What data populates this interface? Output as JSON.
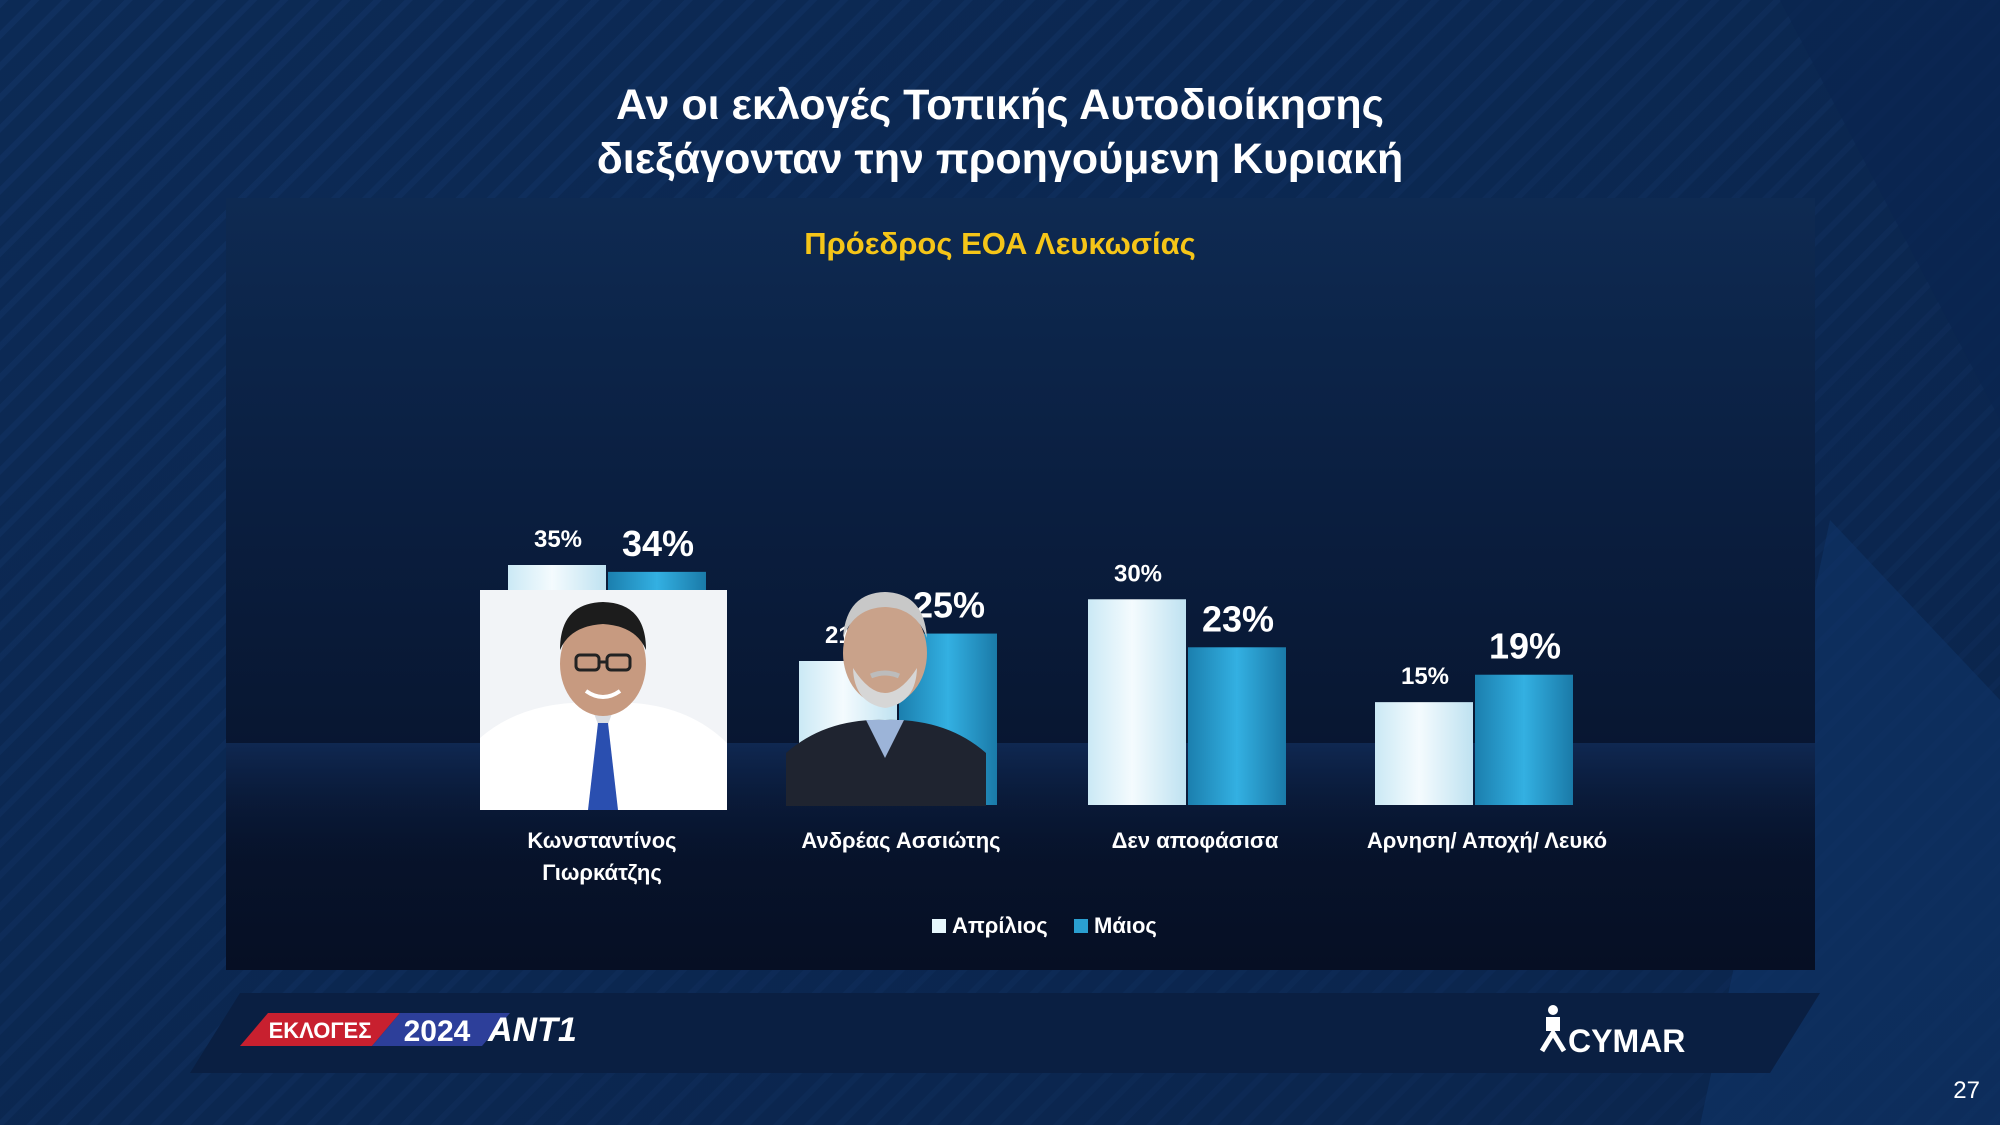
{
  "header": {
    "title_line1": "Αν οι εκλογές Τοπικής Αυτοδιοίκησης",
    "title_line2": "διεξάγονταν την προηγούμενη Κυριακή"
  },
  "chart_data": {
    "type": "bar",
    "title": "Πρόεδρος ΕΟΑ Λευκωσίας",
    "categories": [
      "Κωνσταντίνος Γιωρκάτζης",
      "Ανδρέας Ασσιώτης",
      "Δεν αποφάσισα",
      "Αρνηση/ Αποχή/ Λευκό"
    ],
    "category_lines": [
      [
        "Κωνσταντίνος",
        "Γιωρκάτζης"
      ],
      [
        "Ανδρέας Ασσιώτης"
      ],
      [
        "Δεν αποφάσισα"
      ],
      [
        "Αρνηση/ Αποχή/ Λευκό"
      ]
    ],
    "series": [
      {
        "name": "Απρίλιος",
        "values": [
          35,
          21,
          30,
          15
        ],
        "labels": [
          "35%",
          "21%",
          "30%",
          "15%"
        ],
        "color": "#e6f7fd"
      },
      {
        "name": "Μάιος",
        "values": [
          34,
          25,
          23,
          19
        ],
        "labels": [
          "34%",
          "25%",
          "23%",
          "19%"
        ],
        "color": "#2a9fd0"
      }
    ],
    "ylim": [
      0,
      40
    ],
    "legend_position": "bottom",
    "grid": false
  },
  "colors": {
    "background": "#0c2a55",
    "title_accent": "#f5c518",
    "april": "#e6f7fd",
    "may": "#2a9fd0"
  },
  "footer": {
    "elections_label": "ΕΚΛΟΓΕΣ",
    "year": "2024",
    "channel_logo": "ANT1",
    "pollster_logo": "CYMAR"
  },
  "page_number": "27"
}
